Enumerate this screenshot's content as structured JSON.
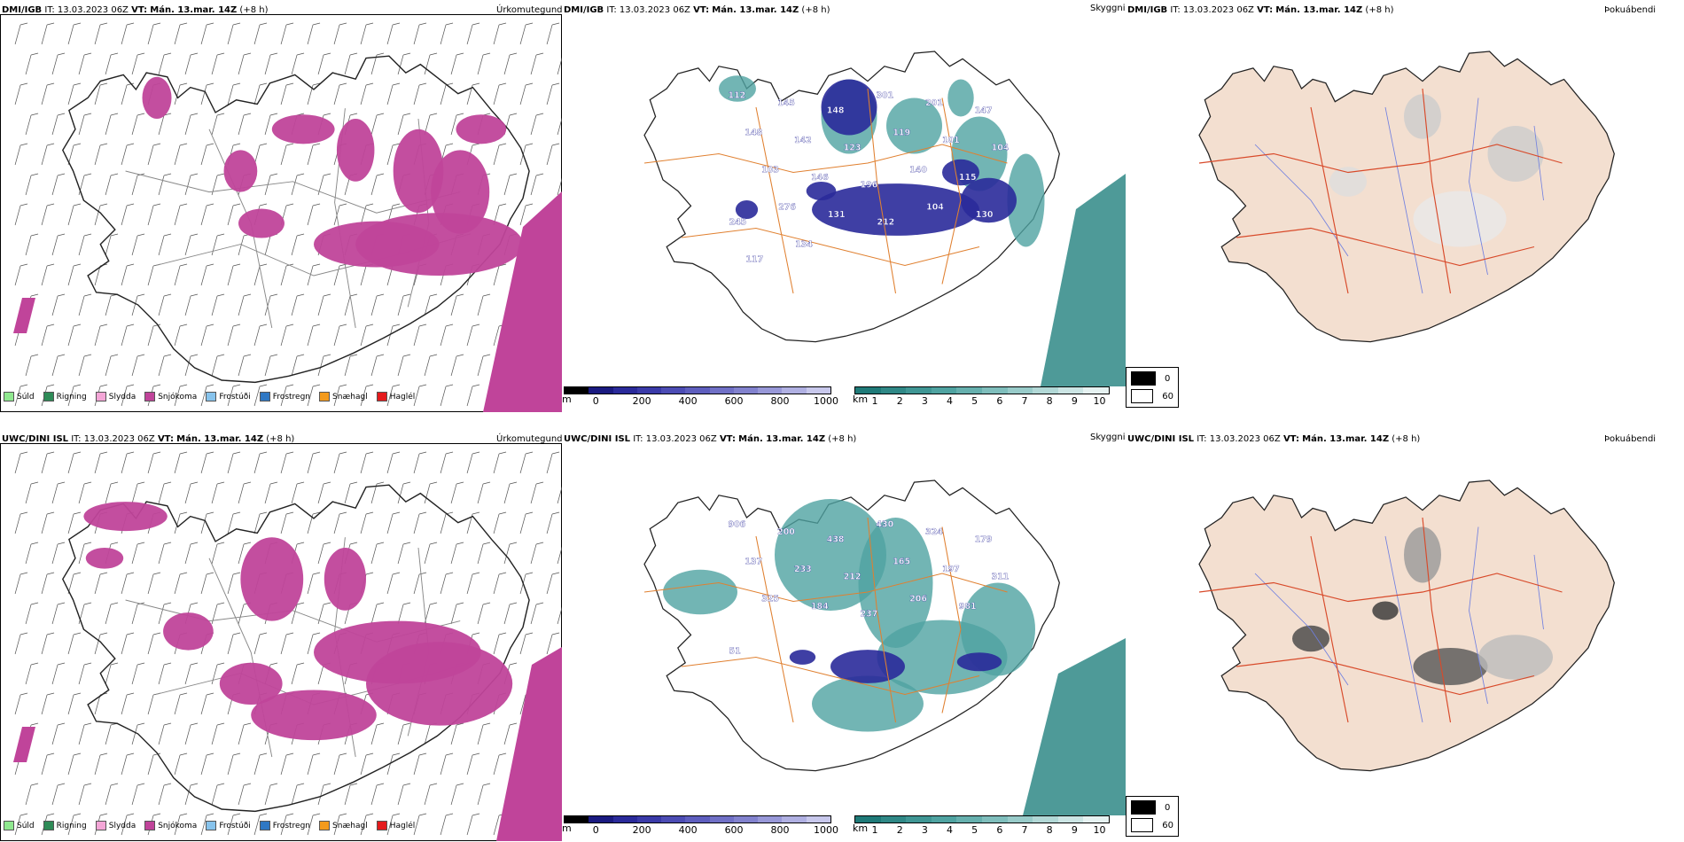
{
  "rows": [
    {
      "model": "DMI/IGB",
      "it_label": "IT:",
      "it": "13.03.2023 06Z",
      "vt_label": "VT:",
      "vt": "Mán. 13.mar. 14Z",
      "lead": "(+8 h)"
    },
    {
      "model": "UWC/DINI ISL",
      "it_label": "IT:",
      "it": "13.03.2023 06Z",
      "vt_label": "VT:",
      "vt": "Mán. 13.mar. 14Z",
      "lead": "(+8 h)"
    }
  ],
  "panels": {
    "precip_type": "Úrkomutegund",
    "visibility": "Skyggni",
    "fog": "Þokuábendi"
  },
  "precip_legend": [
    {
      "label": "Súld",
      "color": "#8fe88f"
    },
    {
      "label": "Rigning",
      "color": "#2e8b57"
    },
    {
      "label": "Slydda",
      "color": "#f4a6d7"
    },
    {
      "label": "Snjókoma",
      "color": "#c0449a"
    },
    {
      "label": "Frostúði",
      "color": "#87c3ec"
    },
    {
      "label": "Frostregn",
      "color": "#2f78c4"
    },
    {
      "label": "Snæhagl",
      "color": "#f39a1c"
    },
    {
      "label": "Haglél",
      "color": "#e41a1c"
    }
  ],
  "cloud_base_bar": {
    "unit": "m",
    "ticks": [
      "0",
      "200",
      "400",
      "600",
      "800",
      "1000"
    ],
    "colors": [
      "#000000",
      "#1a1a80",
      "#2a2a9a",
      "#3a3aa8",
      "#4c4cb4",
      "#5e5ebe",
      "#7070c6",
      "#8282ce",
      "#9898d8",
      "#b0b0e2",
      "#c8c8ec"
    ]
  },
  "visibility_bar": {
    "unit": "km",
    "ticks": [
      "1",
      "2",
      "3",
      "4",
      "5",
      "6",
      "7",
      "8",
      "9",
      "10"
    ],
    "colors": [
      "#1f7a78",
      "#2f8886",
      "#3f9694",
      "#4fa3a1",
      "#66b0ae",
      "#7fbebc",
      "#98cbc9",
      "#b2d8d6",
      "#cce5e4",
      "#e6f2f1"
    ]
  },
  "cloud_legend": [
    {
      "label": "0",
      "color": "#000000"
    },
    {
      "label": "60",
      "color": "#ffffff"
    }
  ],
  "cloud_base_labels": [
    [
      "112",
      "145",
      "148",
      "301",
      "201",
      "147",
      "148",
      "142",
      "123",
      "119",
      "101",
      "104",
      "103",
      "146",
      "196",
      "140",
      "115",
      "245",
      "276",
      "131",
      "212",
      "104",
      "130",
      "117",
      "134"
    ],
    [
      "906",
      "200",
      "438",
      "430",
      "324",
      "179",
      "137",
      "233",
      "212",
      "165",
      "197",
      "311",
      "325",
      "184",
      "237",
      "206",
      "981",
      "51"
    ]
  ]
}
